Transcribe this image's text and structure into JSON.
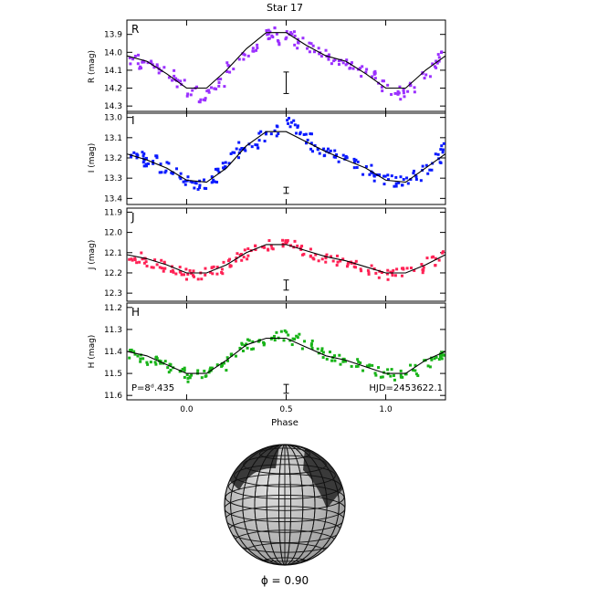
{
  "figure_title": "Star 17",
  "annotations": {
    "period": "P=8ᵈ.435",
    "hjd": "HJD=2453622.1",
    "phase_caption": "ϕ = 0.90"
  },
  "colors": {
    "R": "#9b30ff",
    "I": "#0a1aff",
    "J": "#ff2255",
    "H": "#18b418",
    "fit": "#000000",
    "sphere_light": "#c8c8c8",
    "sphere_spot": "#3a3a3a"
  },
  "chart_data": {
    "type": "scatter",
    "x_axis": {
      "label": "Phase",
      "range": [
        -0.3,
        1.3
      ],
      "ticks": [
        0.0,
        0.5,
        1.0
      ],
      "tick_labels": [
        "0.0",
        "0.5",
        "1.0"
      ]
    },
    "panels": [
      {
        "band": "R",
        "ylabel": "R (mag)",
        "ylim": [
          13.82,
          14.34
        ],
        "ytick_labels": [
          "13.9",
          "14.0",
          "14.1",
          "14.2",
          "14.3"
        ],
        "yticks": [
          13.9,
          14.0,
          14.1,
          14.2,
          14.3
        ],
        "error_bar": {
          "x": 0.5,
          "y": 14.17,
          "half_height": 0.06
        },
        "model": [
          [
            -0.3,
            14.02
          ],
          [
            -0.2,
            14.05
          ],
          [
            -0.1,
            14.12
          ],
          [
            0.0,
            14.2
          ],
          [
            0.1,
            14.2
          ],
          [
            0.2,
            14.1
          ],
          [
            0.3,
            13.98
          ],
          [
            0.4,
            13.89
          ],
          [
            0.5,
            13.89
          ],
          [
            0.6,
            13.96
          ],
          [
            0.7,
            14.02
          ],
          [
            0.8,
            14.05
          ],
          [
            0.9,
            14.12
          ],
          [
            1.0,
            14.2
          ],
          [
            1.1,
            14.2
          ],
          [
            1.2,
            14.1
          ],
          [
            1.3,
            14.02
          ]
        ],
        "points": [
          [
            -0.27,
            14.03
          ],
          [
            -0.22,
            14.06
          ],
          [
            -0.18,
            14.07
          ],
          [
            -0.14,
            14.09
          ],
          [
            -0.08,
            14.12
          ],
          [
            -0.04,
            14.16
          ],
          [
            0.02,
            14.21
          ],
          [
            0.08,
            14.24
          ],
          [
            0.12,
            14.22
          ],
          [
            0.16,
            14.17
          ],
          [
            0.22,
            14.08
          ],
          [
            0.28,
            14.01
          ],
          [
            0.33,
            13.96
          ],
          [
            0.4,
            13.9
          ],
          [
            0.43,
            13.88
          ],
          [
            0.47,
            13.92
          ],
          [
            0.52,
            13.9
          ],
          [
            0.56,
            13.94
          ],
          [
            0.62,
            13.96
          ],
          [
            0.68,
            13.99
          ],
          [
            0.72,
            14.03
          ],
          [
            0.78,
            14.05
          ],
          [
            0.82,
            14.06
          ],
          [
            0.88,
            14.1
          ],
          [
            0.94,
            14.13
          ],
          [
            0.98,
            14.18
          ],
          [
            1.04,
            14.2
          ],
          [
            1.08,
            14.23
          ],
          [
            1.14,
            14.19
          ],
          [
            1.2,
            14.12
          ],
          [
            1.25,
            14.06
          ],
          [
            1.28,
            14.01
          ]
        ]
      },
      {
        "band": "I",
        "ylabel": "I (mag)",
        "ylim": [
          12.97,
          13.43
        ],
        "ytick_labels": [
          "13.0",
          "13.1",
          "13.2",
          "13.3",
          "13.4"
        ],
        "yticks": [
          13.0,
          13.1,
          13.2,
          13.3,
          13.4
        ],
        "error_bar": {
          "x": 0.5,
          "y": 13.36,
          "half_height": 0.015
        },
        "model": [
          [
            -0.3,
            13.18
          ],
          [
            -0.2,
            13.21
          ],
          [
            -0.1,
            13.25
          ],
          [
            0.0,
            13.31
          ],
          [
            0.1,
            13.32
          ],
          [
            0.2,
            13.25
          ],
          [
            0.3,
            13.14
          ],
          [
            0.4,
            13.07
          ],
          [
            0.5,
            13.07
          ],
          [
            0.6,
            13.12
          ],
          [
            0.7,
            13.17
          ],
          [
            0.8,
            13.21
          ],
          [
            0.9,
            13.25
          ],
          [
            1.0,
            13.31
          ],
          [
            1.1,
            13.32
          ],
          [
            1.2,
            13.25
          ],
          [
            1.3,
            13.18
          ]
        ],
        "points": [
          [
            -0.28,
            13.18
          ],
          [
            -0.24,
            13.19
          ],
          [
            -0.2,
            13.22
          ],
          [
            -0.16,
            13.2
          ],
          [
            -0.12,
            13.24
          ],
          [
            -0.06,
            13.27
          ],
          [
            -0.02,
            13.3
          ],
          [
            0.03,
            13.33
          ],
          [
            0.07,
            13.32
          ],
          [
            0.12,
            13.3
          ],
          [
            0.16,
            13.27
          ],
          [
            0.2,
            13.24
          ],
          [
            0.24,
            13.17
          ],
          [
            0.28,
            13.14
          ],
          [
            0.33,
            13.12
          ],
          [
            0.38,
            13.09
          ],
          [
            0.44,
            13.06
          ],
          [
            0.52,
            13.02
          ],
          [
            0.56,
            13.05
          ],
          [
            0.6,
            13.1
          ],
          [
            0.64,
            13.14
          ],
          [
            0.68,
            13.16
          ],
          [
            0.73,
            13.18
          ],
          [
            0.78,
            13.2
          ],
          [
            0.84,
            13.22
          ],
          [
            0.9,
            13.25
          ],
          [
            0.95,
            13.28
          ],
          [
            1.0,
            13.3
          ],
          [
            1.05,
            13.31
          ],
          [
            1.1,
            13.31
          ],
          [
            1.15,
            13.28
          ],
          [
            1.2,
            13.25
          ],
          [
            1.25,
            13.2
          ],
          [
            1.29,
            13.14
          ]
        ]
      },
      {
        "band": "J",
        "ylabel": "J (mag)",
        "ylim": [
          11.88,
          12.34
        ],
        "ytick_labels": [
          "11.9",
          "12.0",
          "12.1",
          "12.2",
          "12.3"
        ],
        "yticks": [
          11.9,
          12.0,
          12.1,
          12.2,
          12.3
        ],
        "error_bar": {
          "x": 0.5,
          "y": 12.26,
          "half_height": 0.025
        },
        "model": [
          [
            -0.3,
            12.11
          ],
          [
            -0.2,
            12.13
          ],
          [
            -0.1,
            12.16
          ],
          [
            0.0,
            12.2
          ],
          [
            0.1,
            12.2
          ],
          [
            0.2,
            12.16
          ],
          [
            0.3,
            12.1
          ],
          [
            0.4,
            12.06
          ],
          [
            0.5,
            12.06
          ],
          [
            0.6,
            12.09
          ],
          [
            0.7,
            12.12
          ],
          [
            0.8,
            12.14
          ],
          [
            0.9,
            12.17
          ],
          [
            1.0,
            12.2
          ],
          [
            1.1,
            12.2
          ],
          [
            1.2,
            12.16
          ],
          [
            1.3,
            12.11
          ]
        ],
        "points": [
          [
            -0.28,
            12.11
          ],
          [
            -0.24,
            12.12
          ],
          [
            -0.19,
            12.14
          ],
          [
            -0.14,
            12.15
          ],
          [
            -0.1,
            12.16
          ],
          [
            -0.05,
            12.18
          ],
          [
            0.0,
            12.2
          ],
          [
            0.05,
            12.21
          ],
          [
            0.1,
            12.19
          ],
          [
            0.15,
            12.18
          ],
          [
            0.2,
            12.15
          ],
          [
            0.25,
            12.12
          ],
          [
            0.3,
            12.1
          ],
          [
            0.36,
            12.08
          ],
          [
            0.42,
            12.06
          ],
          [
            0.47,
            12.05
          ],
          [
            0.52,
            12.06
          ],
          [
            0.57,
            12.08
          ],
          [
            0.62,
            12.1
          ],
          [
            0.68,
            12.12
          ],
          [
            0.74,
            12.13
          ],
          [
            0.8,
            12.14
          ],
          [
            0.86,
            12.16
          ],
          [
            0.92,
            12.18
          ],
          [
            0.98,
            12.2
          ],
          [
            1.04,
            12.2
          ],
          [
            1.1,
            12.19
          ],
          [
            1.16,
            12.17
          ],
          [
            1.22,
            12.14
          ],
          [
            1.28,
            12.11
          ]
        ]
      },
      {
        "band": "H",
        "ylabel": "H (mag)",
        "ylim": [
          11.18,
          11.62
        ],
        "ytick_labels": [
          "11.2",
          "11.3",
          "11.4",
          "11.5",
          "11.6"
        ],
        "yticks": [
          11.2,
          11.3,
          11.4,
          11.5,
          11.6
        ],
        "error_bar": {
          "x": 0.5,
          "y": 11.57,
          "half_height": 0.02
        },
        "model": [
          [
            -0.3,
            11.4
          ],
          [
            -0.2,
            11.42
          ],
          [
            -0.1,
            11.46
          ],
          [
            0.0,
            11.5
          ],
          [
            0.1,
            11.5
          ],
          [
            0.2,
            11.44
          ],
          [
            0.3,
            11.37
          ],
          [
            0.4,
            11.34
          ],
          [
            0.5,
            11.34
          ],
          [
            0.6,
            11.38
          ],
          [
            0.7,
            11.42
          ],
          [
            0.8,
            11.44
          ],
          [
            0.9,
            11.47
          ],
          [
            1.0,
            11.5
          ],
          [
            1.1,
            11.5
          ],
          [
            1.2,
            11.44
          ],
          [
            1.3,
            11.4
          ]
        ],
        "points": [
          [
            -0.28,
            11.4
          ],
          [
            -0.23,
            11.42
          ],
          [
            -0.18,
            11.43
          ],
          [
            -0.13,
            11.45
          ],
          [
            -0.08,
            11.47
          ],
          [
            -0.03,
            11.49
          ],
          [
            0.02,
            11.51
          ],
          [
            0.07,
            11.5
          ],
          [
            0.12,
            11.49
          ],
          [
            0.17,
            11.46
          ],
          [
            0.22,
            11.42
          ],
          [
            0.27,
            11.38
          ],
          [
            0.32,
            11.36
          ],
          [
            0.38,
            11.34
          ],
          [
            0.44,
            11.33
          ],
          [
            0.49,
            11.32
          ],
          [
            0.54,
            11.34
          ],
          [
            0.6,
            11.37
          ],
          [
            0.66,
            11.4
          ],
          [
            0.72,
            11.42
          ],
          [
            0.78,
            11.43
          ],
          [
            0.84,
            11.45
          ],
          [
            0.9,
            11.47
          ],
          [
            0.96,
            11.49
          ],
          [
            1.02,
            11.5
          ],
          [
            1.08,
            11.5
          ],
          [
            1.14,
            11.48
          ],
          [
            1.2,
            11.44
          ],
          [
            1.26,
            11.41
          ],
          [
            1.29,
            11.4
          ]
        ]
      }
    ]
  }
}
